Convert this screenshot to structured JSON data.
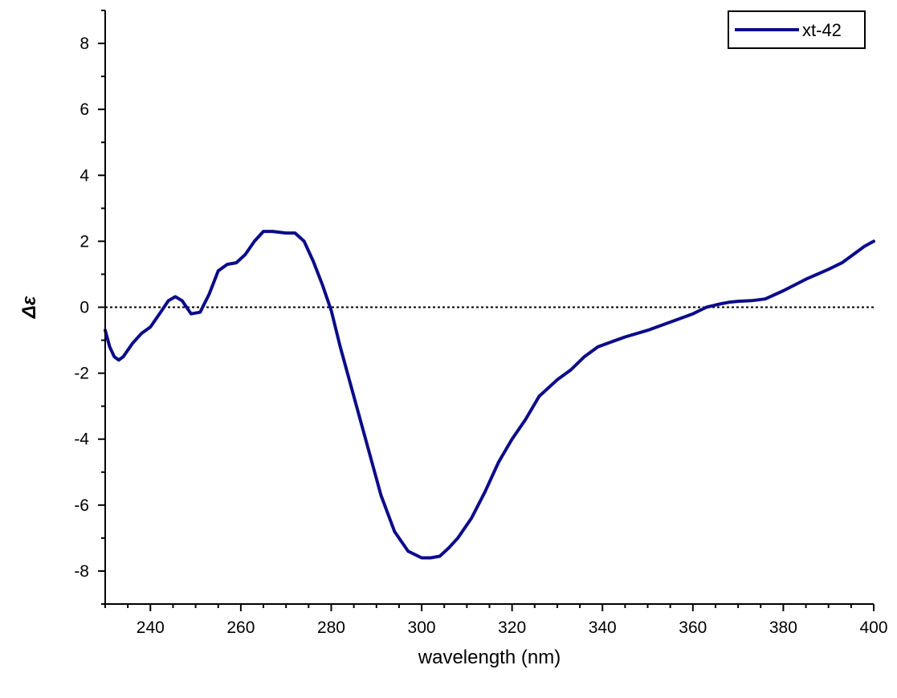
{
  "chart_data": {
    "type": "line",
    "title": "",
    "xlabel": "wavelength (nm)",
    "ylabel": "Δε",
    "xlim": [
      230,
      400
    ],
    "ylim": [
      -9,
      9
    ],
    "x_ticks": [
      240,
      260,
      280,
      300,
      320,
      340,
      360,
      380,
      400
    ],
    "y_ticks": [
      -8,
      -6,
      -4,
      -2,
      0,
      2,
      4,
      6,
      8
    ],
    "x_tick_labels": [
      "240",
      "260",
      "280",
      "300",
      "320",
      "340",
      "360",
      "380",
      "400"
    ],
    "y_tick_labels": [
      "-8",
      "-6",
      "-4",
      "-2",
      "0",
      "2",
      "4",
      "6",
      "8"
    ],
    "grid": false,
    "legend_position": "top-right",
    "reference_line": {
      "y": 0,
      "style": "dotted"
    },
    "series": [
      {
        "name": "xt-42",
        "color": "#0b0b8a",
        "x": [
          230,
          231,
          232,
          233,
          234,
          236,
          238,
          240,
          242,
          244,
          245.5,
          247,
          249,
          251,
          253,
          255,
          257,
          259,
          261,
          263,
          265,
          267,
          270,
          272,
          274,
          276,
          278,
          280,
          282,
          285,
          288,
          291,
          294,
          297,
          300,
          302,
          304,
          306,
          308,
          311,
          314,
          317,
          320,
          323,
          326,
          330,
          333,
          336,
          339,
          342,
          345,
          350,
          355,
          360,
          363,
          366,
          368,
          370,
          373,
          376,
          380,
          385,
          390,
          393,
          396,
          398,
          400
        ],
        "y": [
          -0.7,
          -1.2,
          -1.5,
          -1.6,
          -1.5,
          -1.1,
          -0.8,
          -0.6,
          -0.2,
          0.2,
          0.32,
          0.2,
          -0.2,
          -0.15,
          0.4,
          1.1,
          1.3,
          1.35,
          1.6,
          2.0,
          2.3,
          2.3,
          2.25,
          2.25,
          2.0,
          1.4,
          0.7,
          -0.1,
          -1.2,
          -2.7,
          -4.2,
          -5.7,
          -6.8,
          -7.4,
          -7.6,
          -7.6,
          -7.55,
          -7.3,
          -7.0,
          -6.4,
          -5.6,
          -4.7,
          -4.0,
          -3.4,
          -2.7,
          -2.2,
          -1.9,
          -1.5,
          -1.2,
          -1.05,
          -0.9,
          -0.7,
          -0.45,
          -0.2,
          0.0,
          0.1,
          0.15,
          0.18,
          0.2,
          0.25,
          0.5,
          0.85,
          1.15,
          1.35,
          1.65,
          1.85,
          2.0
        ]
      }
    ]
  }
}
